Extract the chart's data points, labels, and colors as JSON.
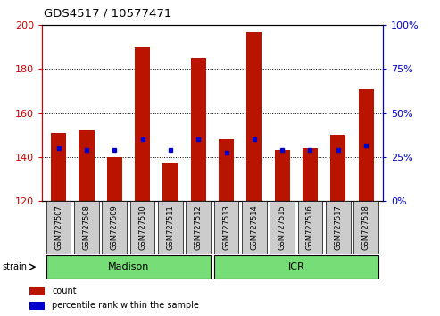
{
  "title": "GDS4517 / 10577471",
  "samples": [
    "GSM727507",
    "GSM727508",
    "GSM727509",
    "GSM727510",
    "GSM727511",
    "GSM727512",
    "GSM727513",
    "GSM727514",
    "GSM727515",
    "GSM727516",
    "GSM727517",
    "GSM727518"
  ],
  "red_values": [
    151,
    152,
    140,
    190,
    137,
    185,
    148,
    197,
    143,
    144,
    150,
    171
  ],
  "blue_values": [
    144,
    143,
    143,
    148,
    143,
    148,
    142,
    148,
    143,
    143,
    143,
    145
  ],
  "ymin": 120,
  "ymax": 200,
  "y_ticks": [
    120,
    140,
    160,
    180,
    200
  ],
  "y2min": 0,
  "y2max": 100,
  "y2_ticks": [
    0,
    25,
    50,
    75,
    100
  ],
  "strain_groups": [
    {
      "label": "Madison",
      "start": 0,
      "end": 6
    },
    {
      "label": "ICR",
      "start": 6,
      "end": 12
    }
  ],
  "strain_label": "strain",
  "legend_count": "count",
  "legend_pct": "percentile rank within the sample",
  "bar_color": "#b81400",
  "blue_color": "#0000cc",
  "grid_color": "#000000",
  "background_bar": "#cccccc",
  "strain_color": "#77dd77",
  "axis_left_color": "#cc0000",
  "axis_right_color": "#0000cc"
}
